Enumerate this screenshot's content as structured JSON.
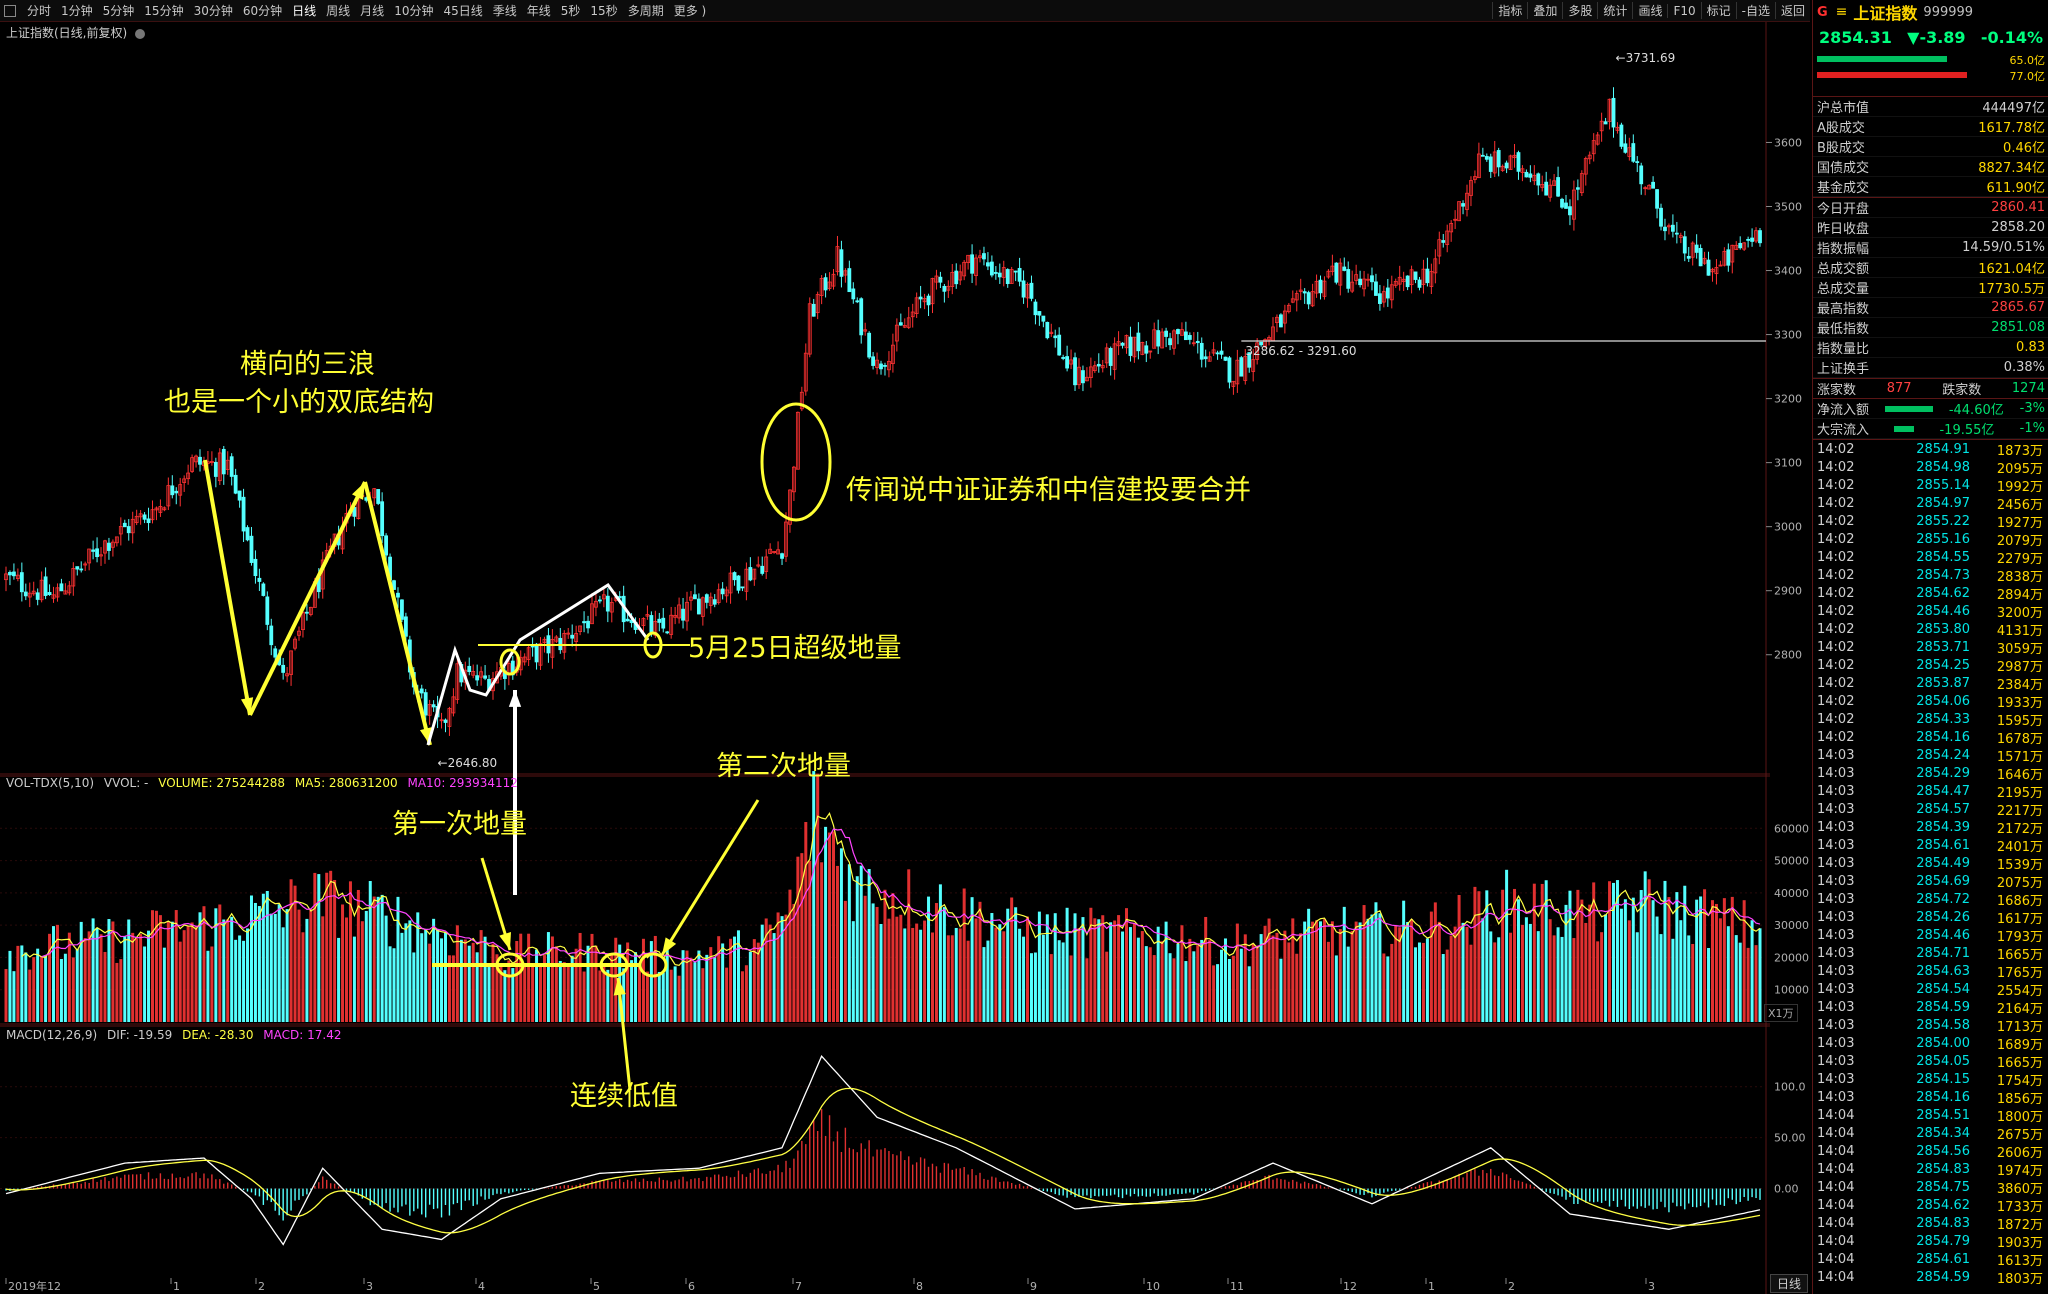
{
  "toolbar": {
    "periods": [
      "分时",
      "1分钟",
      "5分钟",
      "15分钟",
      "30分钟",
      "60分钟",
      "日线",
      "周线",
      "月线",
      "10分钟",
      "45日线",
      "季线",
      "年线",
      "5秒",
      "15秒",
      "多周期",
      "更多 )"
    ],
    "active_index": 6,
    "right_tools": [
      "指标",
      "叠加",
      "多股",
      "统计",
      "画线",
      "F10",
      "标记",
      "-自选",
      "返回"
    ]
  },
  "chart_subtitle": "上证指数(日线,前复权)",
  "vol_header": {
    "name": "VOL-TDX(5,10)",
    "vvol": "VVOL: -",
    "volume": "VOLUME: 275244288",
    "ma5": "MA5: 280631200",
    "ma10": "MA10: 293934112"
  },
  "macd_header": {
    "name": "MACD(12,26,9)",
    "dif": "DIF: -19.59",
    "dea": "DEA: -28.30",
    "macd": "MACD: 17.42"
  },
  "annotations": {
    "three_waves_1": "横向的三浪",
    "three_waves_2": "也是一个小的双底结构",
    "rumor": "传闻说中证证券和中信建投要合并",
    "may25": "5月25日超级地量",
    "second_low_vol": "第二次地量",
    "first_low_vol": "第一次地量",
    "consecutive_low": "连续低值"
  },
  "price_labels": {
    "high": "3731.69",
    "low": "2646.80",
    "range": "3286.62 - 3291.60"
  },
  "volume_unit": "X1万",
  "bottom_button": "日线",
  "right_panel": {
    "g_mark": "G",
    "name": "上证指数",
    "code": "999999",
    "price": "2854.31",
    "change": "▼-3.89",
    "change_pct": "-0.14%",
    "bar_vals": [
      "65.0亿",
      "77.0亿"
    ],
    "stats1": [
      {
        "k": "沪总市值",
        "v": "444497亿",
        "c": "#d0d0d0"
      },
      {
        "k": "A股成交",
        "v": "1617.78亿",
        "c": "#ffd700"
      },
      {
        "k": "B股成交",
        "v": "0.46亿",
        "c": "#ffd700"
      },
      {
        "k": "国债成交",
        "v": "8827.34亿",
        "c": "#ffd700"
      },
      {
        "k": "基金成交",
        "v": "611.90亿",
        "c": "#ffd700"
      }
    ],
    "stats2": [
      {
        "k": "今日开盘",
        "v": "2860.41",
        "c": "#ff4040"
      },
      {
        "k": "昨日收盘",
        "v": "2858.20",
        "c": "#d0d0d0"
      },
      {
        "k": "指数振幅",
        "v": "14.59/0.51%",
        "c": "#d0d0d0"
      },
      {
        "k": "总成交额",
        "v": "1621.04亿",
        "c": "#ffd700"
      },
      {
        "k": "总成交量",
        "v": "17730.5万",
        "c": "#ffd700"
      },
      {
        "k": "最高指数",
        "v": "2865.67",
        "c": "#ff4040"
      },
      {
        "k": "最低指数",
        "v": "2851.08",
        "c": "#00e070"
      },
      {
        "k": "指数量比",
        "v": "0.83",
        "c": "#ffd700"
      },
      {
        "k": "上证换手",
        "v": "0.38%",
        "c": "#d0d0d0"
      }
    ],
    "updown": {
      "up_label": "涨家数",
      "up": "877",
      "down_label": "跌家数",
      "down": "1274"
    },
    "flows": [
      {
        "k": "净流入额",
        "v": "-44.60亿",
        "p": "-3%"
      },
      {
        "k": "大宗流入",
        "v": "-19.55亿",
        "p": "-1%"
      }
    ],
    "ticks": [
      [
        "14:02",
        "2854.91",
        "1873万"
      ],
      [
        "14:02",
        "2854.98",
        "2095万"
      ],
      [
        "14:02",
        "2855.14",
        "1992万"
      ],
      [
        "14:02",
        "2854.97",
        "2456万"
      ],
      [
        "14:02",
        "2855.22",
        "1927万"
      ],
      [
        "14:02",
        "2855.16",
        "2079万"
      ],
      [
        "14:02",
        "2854.55",
        "2279万"
      ],
      [
        "14:02",
        "2854.73",
        "2838万"
      ],
      [
        "14:02",
        "2854.62",
        "2894万"
      ],
      [
        "14:02",
        "2854.46",
        "3200万"
      ],
      [
        "14:02",
        "2853.80",
        "4131万"
      ],
      [
        "14:02",
        "2853.71",
        "3059万"
      ],
      [
        "14:02",
        "2854.25",
        "2987万"
      ],
      [
        "14:02",
        "2853.87",
        "2384万"
      ],
      [
        "14:02",
        "2854.06",
        "1933万"
      ],
      [
        "14:02",
        "2854.33",
        "1595万"
      ],
      [
        "14:02",
        "2854.16",
        "1678万"
      ],
      [
        "14:03",
        "2854.24",
        "1571万"
      ],
      [
        "14:03",
        "2854.29",
        "1646万"
      ],
      [
        "14:03",
        "2854.47",
        "2195万"
      ],
      [
        "14:03",
        "2854.57",
        "2217万"
      ],
      [
        "14:03",
        "2854.39",
        "2172万"
      ],
      [
        "14:03",
        "2854.61",
        "2401万"
      ],
      [
        "14:03",
        "2854.49",
        "1539万"
      ],
      [
        "14:03",
        "2854.69",
        "2075万"
      ],
      [
        "14:03",
        "2854.72",
        "1686万"
      ],
      [
        "14:03",
        "2854.26",
        "1617万"
      ],
      [
        "14:03",
        "2854.46",
        "1793万"
      ],
      [
        "14:03",
        "2854.71",
        "1665万"
      ],
      [
        "14:03",
        "2854.63",
        "1765万"
      ],
      [
        "14:03",
        "2854.54",
        "2554万"
      ],
      [
        "14:03",
        "2854.59",
        "2164万"
      ],
      [
        "14:03",
        "2854.58",
        "1713万"
      ],
      [
        "14:03",
        "2854.00",
        "1689万"
      ],
      [
        "14:03",
        "2854.05",
        "1665万"
      ],
      [
        "14:03",
        "2854.15",
        "1754万"
      ],
      [
        "14:03",
        "2854.16",
        "1856万"
      ],
      [
        "14:04",
        "2854.51",
        "1800万"
      ],
      [
        "14:04",
        "2854.34",
        "2675万"
      ],
      [
        "14:04",
        "2854.56",
        "2606万"
      ],
      [
        "14:04",
        "2854.83",
        "1974万"
      ],
      [
        "14:04",
        "2854.75",
        "3860万"
      ],
      [
        "14:04",
        "2854.62",
        "1733万"
      ],
      [
        "14:04",
        "2854.83",
        "1872万"
      ],
      [
        "14:04",
        "2854.79",
        "1903万"
      ],
      [
        "14:04",
        "2854.61",
        "1613万"
      ],
      [
        "14:04",
        "2854.59",
        "1803万"
      ]
    ]
  },
  "chart_data": [
    {
      "type": "candlestick",
      "title": "上证指数(日线,前复权)",
      "ylim": [
        2620,
        3760
      ],
      "yticks": [
        2800,
        2900,
        3000,
        3100,
        3200,
        3300,
        3400,
        3500,
        3600
      ],
      "xticks": [
        "2019年12",
        "1",
        "2",
        "3",
        "4",
        "5",
        "6",
        "7",
        "8",
        "9",
        "10",
        "11",
        "12",
        "1",
        "2",
        "3"
      ],
      "anchor_points": [
        {
          "i": 0,
          "v": 2920
        },
        {
          "i": 12,
          "v": 2890
        },
        {
          "i": 25,
          "v": 2975
        },
        {
          "i": 38,
          "v": 3030
        },
        {
          "i": 47,
          "v": 3100
        },
        {
          "i": 56,
          "v": 3095
        },
        {
          "i": 62,
          "v": 2955
        },
        {
          "i": 70,
          "v": 2760
        },
        {
          "i": 78,
          "v": 2900
        },
        {
          "i": 87,
          "v": 3030
        },
        {
          "i": 93,
          "v": 3060
        },
        {
          "i": 103,
          "v": 2750
        },
        {
          "i": 110,
          "v": 2680
        },
        {
          "i": 114,
          "v": 2770
        },
        {
          "i": 121,
          "v": 2760
        },
        {
          "i": 126,
          "v": 2780
        },
        {
          "i": 140,
          "v": 2820
        },
        {
          "i": 152,
          "v": 2880
        },
        {
          "i": 165,
          "v": 2835
        },
        {
          "i": 174,
          "v": 2880
        },
        {
          "i": 188,
          "v": 2930
        },
        {
          "i": 196,
          "v": 2970
        },
        {
          "i": 198,
          "v": 3050
        },
        {
          "i": 203,
          "v": 3330
        },
        {
          "i": 210,
          "v": 3420
        },
        {
          "i": 220,
          "v": 3250
        },
        {
          "i": 232,
          "v": 3360
        },
        {
          "i": 245,
          "v": 3420
        },
        {
          "i": 258,
          "v": 3370
        },
        {
          "i": 270,
          "v": 3230
        },
        {
          "i": 283,
          "v": 3280
        },
        {
          "i": 296,
          "v": 3300
        },
        {
          "i": 310,
          "v": 3240
        },
        {
          "i": 322,
          "v": 3320
        },
        {
          "i": 335,
          "v": 3400
        },
        {
          "i": 348,
          "v": 3360
        },
        {
          "i": 360,
          "v": 3400
        },
        {
          "i": 372,
          "v": 3570
        },
        {
          "i": 385,
          "v": 3560
        },
        {
          "i": 395,
          "v": 3500
        },
        {
          "i": 405,
          "v": 3650
        },
        {
          "i": 412,
          "v": 3560
        },
        {
          "i": 422,
          "v": 3440
        },
        {
          "i": 432,
          "v": 3400
        },
        {
          "i": 442,
          "v": 3460
        }
      ],
      "n_bars": 444,
      "high_label": 3731.69,
      "low_label": 2646.8,
      "support_line": [
        3286.62,
        3291.6
      ]
    },
    {
      "type": "bar",
      "name": "VOL-TDX(5,10)",
      "ylim": [
        0,
        70000
      ],
      "yticks": [
        10000,
        20000,
        30000,
        40000,
        50000,
        60000
      ],
      "unit": "X1万",
      "anchor_points": [
        {
          "i": 0,
          "v": 22000
        },
        {
          "i": 30,
          "v": 26000
        },
        {
          "i": 60,
          "v": 32000
        },
        {
          "i": 80,
          "v": 38000
        },
        {
          "i": 95,
          "v": 33000
        },
        {
          "i": 110,
          "v": 28000
        },
        {
          "i": 126,
          "v": 21000
        },
        {
          "i": 150,
          "v": 22000
        },
        {
          "i": 170,
          "v": 20000
        },
        {
          "i": 190,
          "v": 23000
        },
        {
          "i": 198,
          "v": 35000
        },
        {
          "i": 204,
          "v": 65000
        },
        {
          "i": 215,
          "v": 42000
        },
        {
          "i": 235,
          "v": 36000
        },
        {
          "i": 260,
          "v": 28000
        },
        {
          "i": 290,
          "v": 27000
        },
        {
          "i": 310,
          "v": 24000
        },
        {
          "i": 335,
          "v": 28000
        },
        {
          "i": 365,
          "v": 30000
        },
        {
          "i": 380,
          "v": 37000
        },
        {
          "i": 400,
          "v": 33000
        },
        {
          "i": 415,
          "v": 37000
        },
        {
          "i": 444,
          "v": 28000
        }
      ]
    },
    {
      "type": "bar",
      "name": "MACD(12,26,9)",
      "ylim": [
        -80,
        140
      ],
      "yticks": [
        0.0,
        50.0,
        100.0
      ],
      "anchor_points": [
        {
          "i": 0,
          "v": -5
        },
        {
          "i": 30,
          "v": 25
        },
        {
          "i": 50,
          "v": 30
        },
        {
          "i": 62,
          "v": -10
        },
        {
          "i": 70,
          "v": -55
        },
        {
          "i": 80,
          "v": 20
        },
        {
          "i": 95,
          "v": -40
        },
        {
          "i": 110,
          "v": -50
        },
        {
          "i": 125,
          "v": -10
        },
        {
          "i": 150,
          "v": 15
        },
        {
          "i": 175,
          "v": 20
        },
        {
          "i": 196,
          "v": 40
        },
        {
          "i": 206,
          "v": 130
        },
        {
          "i": 220,
          "v": 70
        },
        {
          "i": 240,
          "v": 40
        },
        {
          "i": 270,
          "v": -20
        },
        {
          "i": 300,
          "v": -10
        },
        {
          "i": 320,
          "v": 25
        },
        {
          "i": 345,
          "v": -15
        },
        {
          "i": 375,
          "v": 40
        },
        {
          "i": 395,
          "v": -25
        },
        {
          "i": 420,
          "v": -40
        },
        {
          "i": 444,
          "v": -20
        }
      ]
    }
  ]
}
